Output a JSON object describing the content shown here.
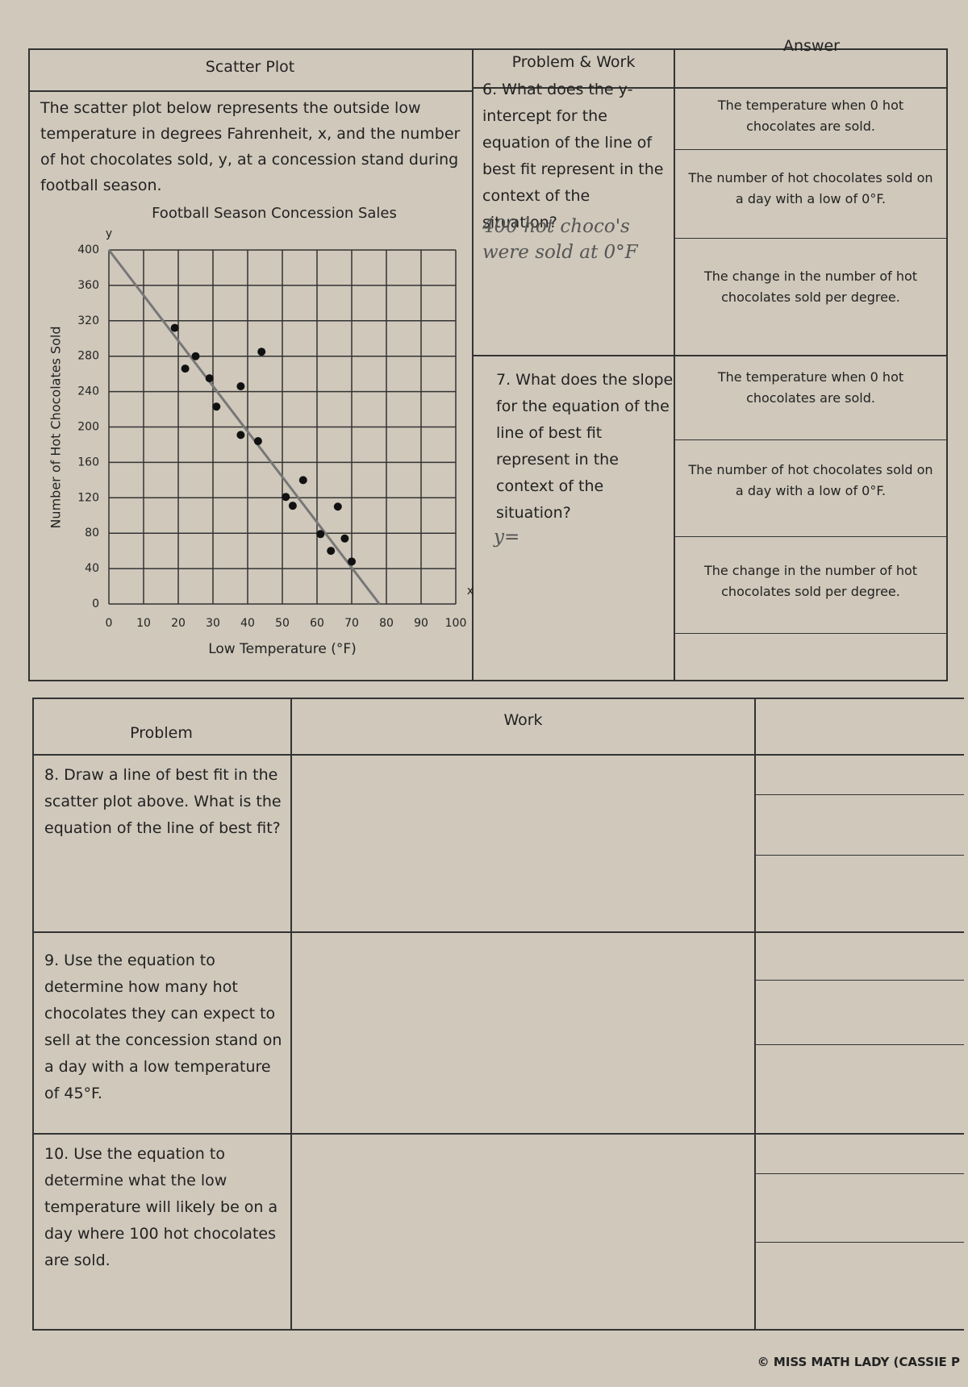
{
  "scatter_section": {
    "heading": "Scatter Plot",
    "intro": "The scatter plot below represents the outside low temperature in degrees Fahrenheit, x, and the number of hot chocolates sold, y, at a concession stand during football season.",
    "chart_data": {
      "type": "scatter",
      "title": "Football Season Concession Sales",
      "x_label": "Low Temperature (°F)",
      "y_label": "Number of Hot Chocolates Sold",
      "x_axis_letter": "x",
      "y_axis_letter": "y",
      "x": [
        19,
        25,
        22,
        44,
        29,
        38,
        31,
        38,
        43,
        56,
        51,
        53,
        66,
        61,
        68,
        64,
        70
      ],
      "values": [
        312,
        280,
        266,
        285,
        255,
        246,
        223,
        191,
        184,
        140,
        121,
        111,
        110,
        79,
        74,
        60,
        48
      ],
      "color": "#111111",
      "xlim": [
        0,
        100
      ],
      "ylim": [
        0,
        400
      ],
      "xticks": [
        0,
        10,
        20,
        30,
        40,
        50,
        60,
        70,
        80,
        90,
        100
      ],
      "yticks": [
        0,
        40,
        80,
        120,
        160,
        200,
        240,
        280,
        320,
        360,
        400
      ],
      "grid": true,
      "fit_line": {
        "x": [
          0,
          78
        ],
        "y": [
          400,
          0
        ],
        "color": "#777777"
      }
    }
  },
  "top_table": {
    "headers": [
      "Problem & Work",
      "Answer"
    ],
    "questions": [
      {
        "text": "6. What does the y-intercept for the equation of the line of best fit represent in the context of the situation?",
        "handwritten": "400 hot choco's were sold at 0°F",
        "choices": [
          "The temperature when 0 hot chocolates are sold.",
          "The number of hot chocolates sold on a day with a low of 0°F.",
          "The change in the number of hot chocolates sold per degree."
        ]
      },
      {
        "text": "7. What does the slope for the equation of the line of best fit represent in the context of the situation?",
        "handwritten": "y=",
        "choices": [
          "The temperature when 0 hot chocolates are sold.",
          "The number of hot chocolates sold on a day with a low of 0°F.",
          "The change in the number of hot chocolates sold per degree."
        ]
      }
    ]
  },
  "bottom_table": {
    "headers": [
      "Problem",
      "Work"
    ],
    "rows": [
      "8. Draw a line of best fit in the scatter plot above. What is the equation of the line of best fit?",
      "9. Use the equation to determine how many hot chocolates they can expect to sell at the concession stand on a day with a low temperature of 45°F.",
      "10. Use the equation to determine what the low temperature will likely be on a day where 100 hot chocolates are sold."
    ]
  },
  "footer": "© MISS MATH LADY (CASSIE P"
}
